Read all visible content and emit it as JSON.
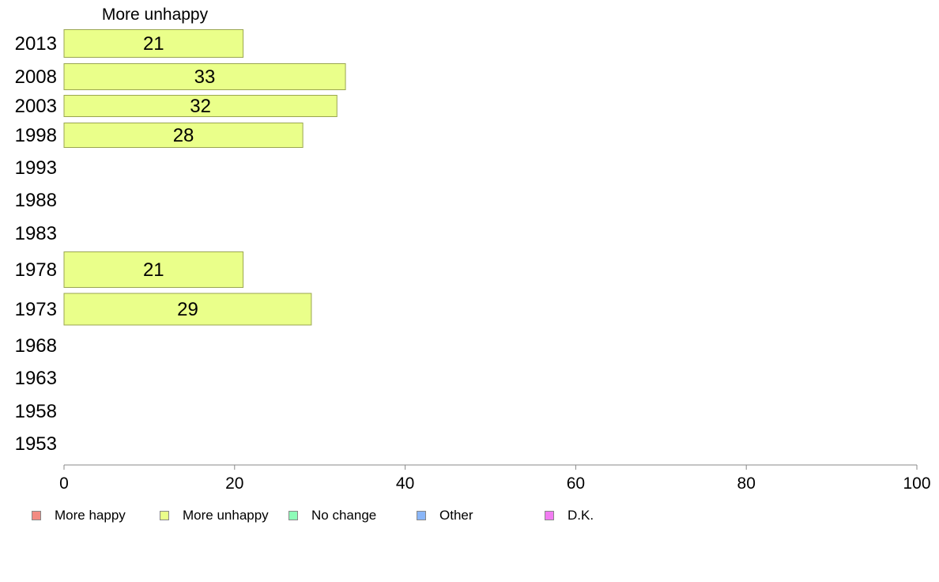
{
  "chart_data": {
    "type": "bar",
    "orientation": "horizontal",
    "title": "More unhappy",
    "categories": [
      "2013",
      "2008",
      "2003",
      "1998",
      "1993",
      "1988",
      "1983",
      "1978",
      "1973",
      "1968",
      "1963",
      "1958",
      "1953"
    ],
    "series": [
      {
        "name": "More happy",
        "color": "#f28b82",
        "values": [
          null,
          null,
          null,
          null,
          null,
          null,
          null,
          null,
          null,
          null,
          null,
          null,
          null
        ]
      },
      {
        "name": "More unhappy",
        "color": "#eaff8a",
        "values": [
          21,
          33,
          32,
          28,
          null,
          null,
          null,
          21,
          29,
          null,
          null,
          null,
          null
        ]
      },
      {
        "name": "No change",
        "color": "#8dfcb8",
        "values": [
          null,
          null,
          null,
          null,
          null,
          null,
          null,
          null,
          null,
          null,
          null,
          null,
          null
        ]
      },
      {
        "name": "Other",
        "color": "#8ab6f8",
        "values": [
          null,
          null,
          null,
          null,
          null,
          null,
          null,
          null,
          null,
          null,
          null,
          null,
          null
        ]
      },
      {
        "name": "D.K.",
        "color": "#f27cf2",
        "values": [
          null,
          null,
          null,
          null,
          null,
          null,
          null,
          null,
          null,
          null,
          null,
          null,
          null
        ]
      }
    ],
    "xlim": [
      0,
      100
    ],
    "xticks": [
      "0",
      "20",
      "40",
      "60",
      "80",
      "100"
    ],
    "grid": false,
    "legend_position": "bottom-left"
  }
}
